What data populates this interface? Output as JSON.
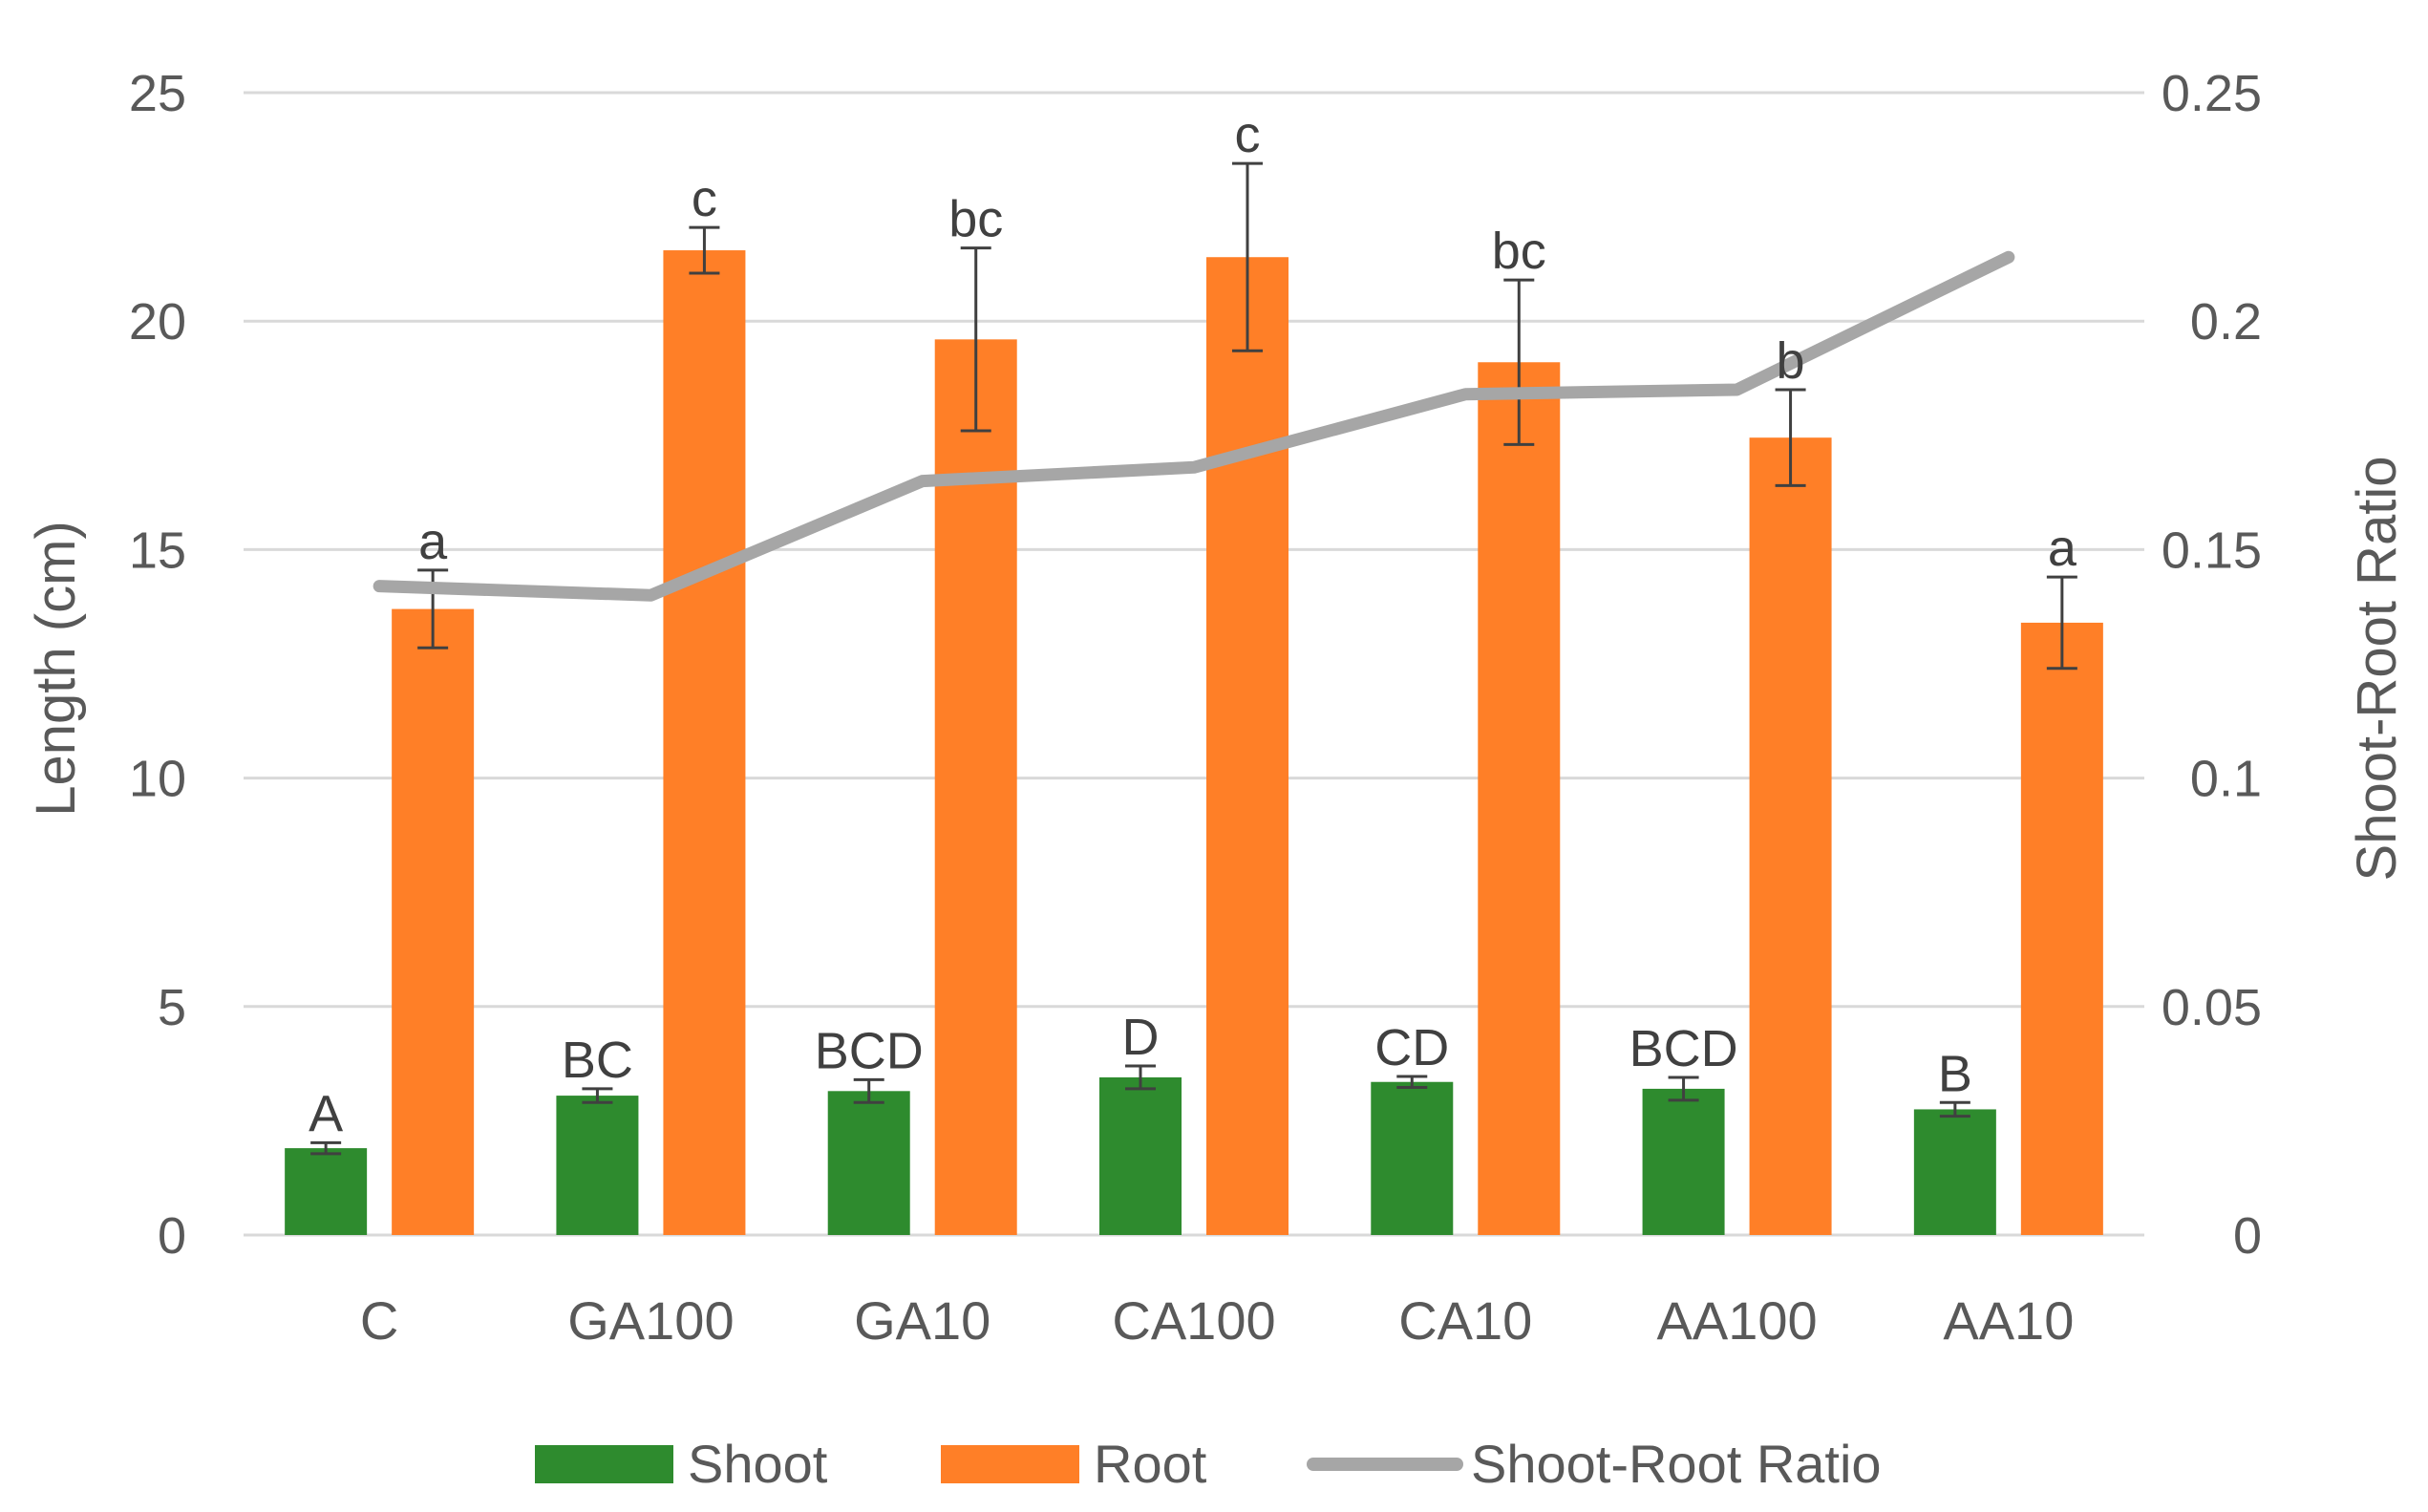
{
  "colors": {
    "shoot": "#2e8b2e",
    "root": "#ff7f27",
    "ratio": "#a6a6a6",
    "grid": "#d9d9d9",
    "text": "#595959",
    "error": "#404040"
  },
  "chart_data": {
    "type": "bar",
    "title": "",
    "xlabel": "",
    "ylabel": "Length (cm)",
    "y2label": "Shoot-Root Ratio",
    "ylim": [
      0,
      25
    ],
    "y2lim": [
      0,
      0.25
    ],
    "grid": true,
    "legend_position": "bottom",
    "y_ticks": [
      "0",
      "5",
      "10",
      "15",
      "20",
      "25"
    ],
    "y2_ticks": [
      "0",
      "0.05",
      "0.1",
      "0.15",
      "0.2",
      "0.25"
    ],
    "categories": [
      "C",
      "GA100",
      "GA10",
      "CA100",
      "CA10",
      "AA100",
      "AA10"
    ],
    "series": [
      {
        "name": "Shoot",
        "kind": "bar",
        "values": [
          1.9,
          3.05,
          3.15,
          3.45,
          3.35,
          3.2,
          2.75
        ],
        "errors": [
          0.12,
          0.15,
          0.25,
          0.25,
          0.12,
          0.25,
          0.15
        ],
        "labels": [
          "A",
          "BC",
          "BCD",
          "D",
          "CD",
          "BCD",
          "B"
        ]
      },
      {
        "name": "Root",
        "kind": "bar",
        "values": [
          13.7,
          21.55,
          19.6,
          21.4,
          19.1,
          17.45,
          13.4
        ],
        "errors": [
          0.85,
          0.5,
          2.0,
          2.05,
          1.8,
          1.05,
          1.0
        ],
        "labels": [
          "a",
          "c",
          "bc",
          "c",
          "bc",
          "b",
          "a"
        ]
      },
      {
        "name": "Shoot-Root Ratio",
        "kind": "line",
        "axis": "right",
        "values": [
          0.142,
          0.14,
          0.165,
          0.168,
          0.184,
          0.185,
          0.214
        ]
      }
    ]
  }
}
